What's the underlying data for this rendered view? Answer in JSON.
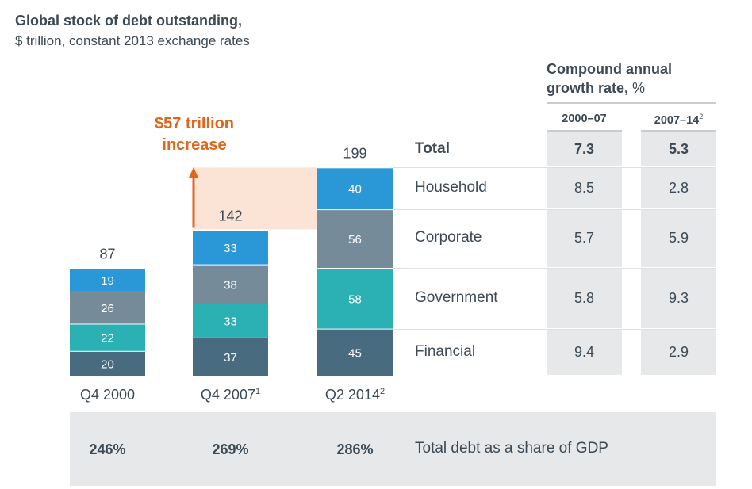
{
  "header": {
    "title": "Global stock of debt outstanding,",
    "subtitle": "$ trillion, constant 2013 exchange rates"
  },
  "cagr": {
    "title_line1": "Compound annual",
    "title_line2": "growth rate,",
    "title_unit": "%",
    "col1_label": "2000–07",
    "col2_label": "2007–14",
    "col2_sup": "2"
  },
  "annotation": {
    "line1": "$57 trillion",
    "line2": "increase"
  },
  "chart_data": {
    "type": "bar",
    "stacked": true,
    "categories": [
      "Q4 2000",
      "Q4 2007",
      "Q2 2014"
    ],
    "category_sups": [
      "",
      "1",
      "2"
    ],
    "series": [
      {
        "name": "Financial",
        "values": [
          20,
          37,
          45
        ],
        "color": "#496b80"
      },
      {
        "name": "Government",
        "values": [
          22,
          33,
          58
        ],
        "color": "#2bb0b3"
      },
      {
        "name": "Corporate",
        "values": [
          26,
          38,
          56
        ],
        "color": "#758b9a"
      },
      {
        "name": "Household",
        "values": [
          19,
          33,
          40
        ],
        "color": "#2a97d6"
      }
    ],
    "totals": [
      87,
      142,
      199
    ],
    "increase_color": "#e0661c",
    "increase_band_color": "#fbe3d6"
  },
  "table": {
    "rows": [
      {
        "name": "Total",
        "c1": "7.3",
        "c2": "5.3",
        "bold": true
      },
      {
        "name": "Household",
        "c1": "8.5",
        "c2": "2.8"
      },
      {
        "name": "Corporate",
        "c1": "5.7",
        "c2": "5.9"
      },
      {
        "name": "Government",
        "c1": "5.8",
        "c2": "9.3"
      },
      {
        "name": "Financial",
        "c1": "9.4",
        "c2": "2.9"
      }
    ],
    "cell_bg": "#e7e8e9"
  },
  "gdp": {
    "values": [
      "246%",
      "269%",
      "286%"
    ],
    "label": "Total debt as a share of GDP"
  }
}
